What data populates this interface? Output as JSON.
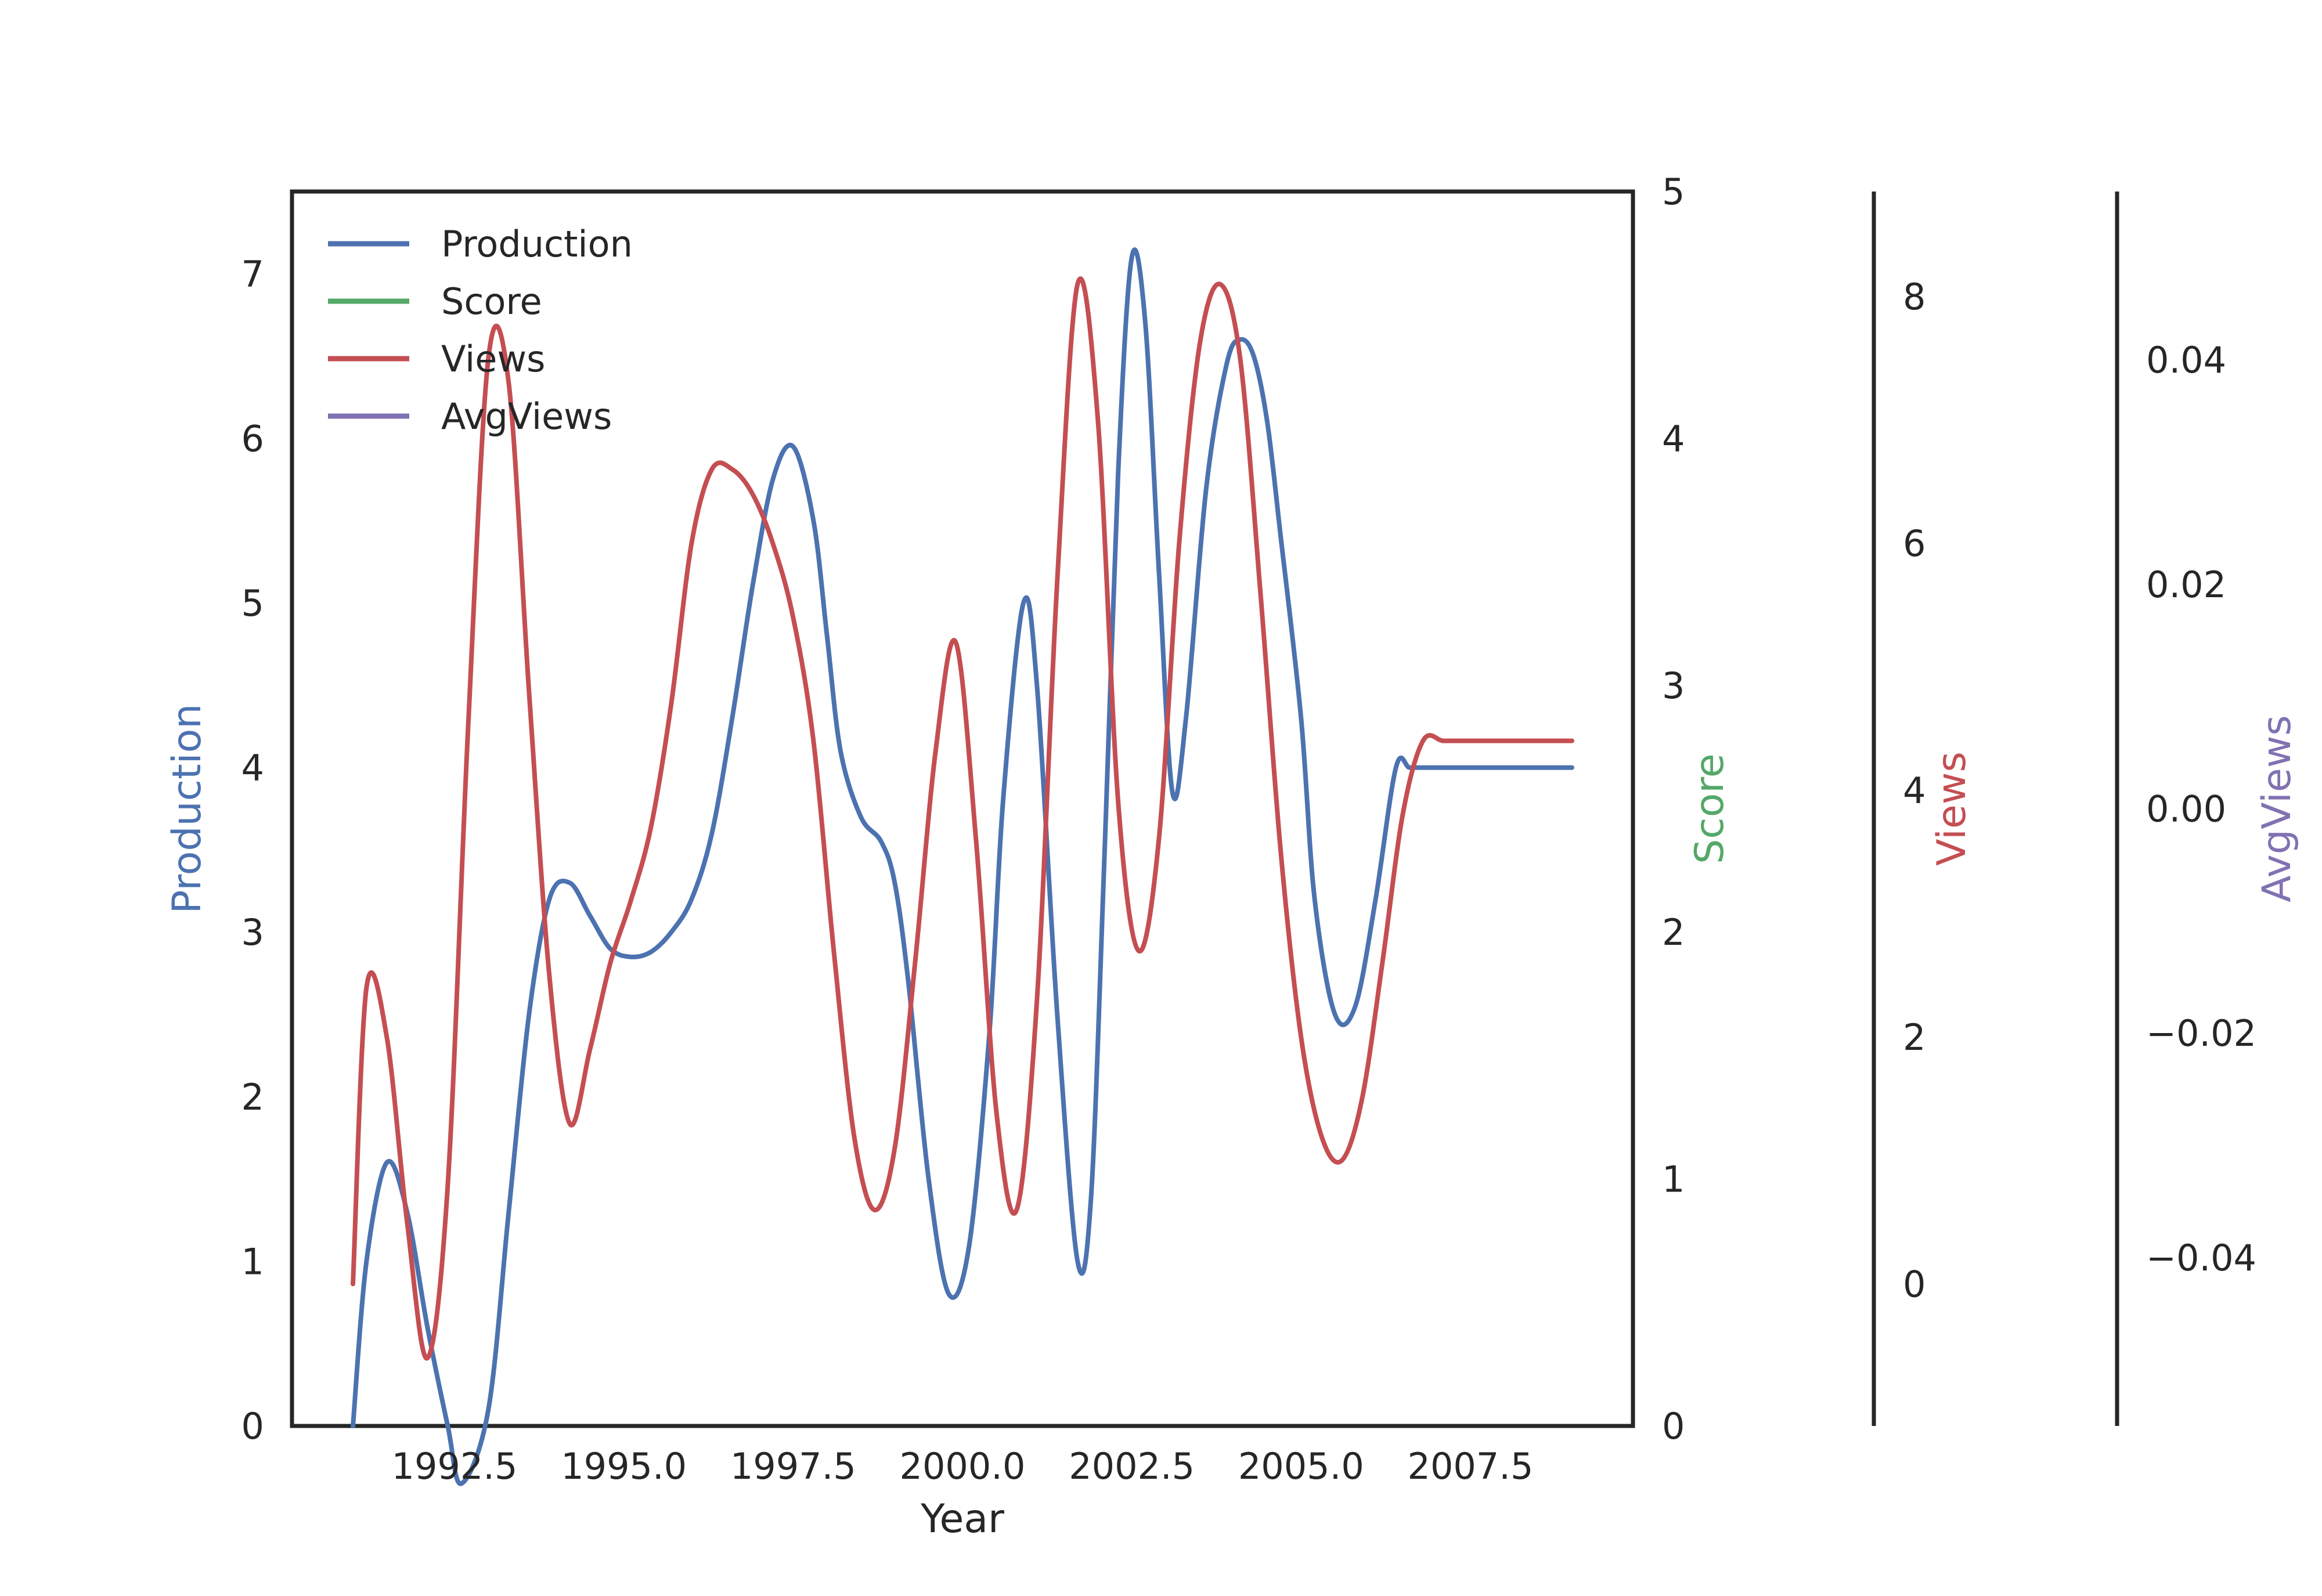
{
  "chart_data": {
    "type": "line",
    "xlabel": "Year",
    "x_ticks": [
      "1992.5",
      "1995.0",
      "1997.5",
      "2000.0",
      "2002.5",
      "2005.0",
      "2007.5"
    ],
    "xlim": [
      1990.1,
      2009.9
    ],
    "axes": [
      {
        "name": "Production",
        "label": "Production",
        "side": "left",
        "color": "#4c72b0",
        "ylim": [
          0,
          7.5
        ],
        "ticks": [
          "0",
          "1",
          "2",
          "3",
          "4",
          "5",
          "6",
          "7"
        ]
      },
      {
        "name": "Score",
        "label": "Score",
        "side": "right",
        "color": "#55a868",
        "ylim": [
          0,
          5
        ],
        "ticks": [
          "0",
          "1",
          "2",
          "3",
          "4",
          "5"
        ]
      },
      {
        "name": "Views",
        "label": "Views",
        "side": "right",
        "color": "#c44e52",
        "ylim": [
          -1.15,
          8.85
        ],
        "ticks": [
          "0",
          "2",
          "4",
          "6",
          "8"
        ]
      },
      {
        "name": "AvgViews",
        "label": "AvgViews",
        "side": "right",
        "color": "#8172b2",
        "ylim": [
          -0.055,
          0.055
        ],
        "ticks": [
          "−0.04",
          "−0.02",
          "0.00",
          "0.02",
          "0.04"
        ]
      }
    ],
    "legend": {
      "placement": "upper-left",
      "entries": [
        "Production",
        "Score",
        "Views",
        "AvgViews"
      ]
    },
    "grid": false,
    "series": [
      {
        "name": "Production",
        "color": "#4c72b0",
        "axis": 0,
        "x": [
          1991.0,
          1991.2,
          1991.5,
          1991.8,
          1992.1,
          1992.4,
          1992.6,
          1993.0,
          1993.3,
          1993.6,
          1993.9,
          1994.2,
          1994.5,
          1994.8,
          1995.1,
          1995.4,
          1995.7,
          1996.0,
          1996.3,
          1996.6,
          1996.9,
          1997.2,
          1997.5,
          1997.8,
          1998.0,
          1998.2,
          1998.5,
          1998.8,
          1999.0,
          1999.2,
          1999.5,
          1999.8,
          2000.1,
          2000.4,
          2000.6,
          2000.9,
          2001.1,
          2001.4,
          2001.7,
          2001.9,
          2002.1,
          2002.3,
          2002.5,
          2002.7,
          2002.9,
          2003.1,
          2003.3,
          2003.6,
          2003.9,
          2004.1,
          2004.3,
          2004.5,
          2004.7,
          2005.0,
          2005.2,
          2005.5,
          2005.8,
          2006.1,
          2006.4,
          2006.6,
          2006.8,
          2007.1,
          2007.4,
          2007.7,
          2008.0,
          2008.3,
          2008.5,
          2008.7,
          2008.9,
          2009.0
        ],
        "values": [
          0.0,
          1.0,
          1.6,
          1.3,
          0.6,
          0.0,
          -0.35,
          0.1,
          1.3,
          2.5,
          3.2,
          3.3,
          3.1,
          2.9,
          2.85,
          2.88,
          3.0,
          3.2,
          3.6,
          4.3,
          5.1,
          5.75,
          5.95,
          5.5,
          4.8,
          4.1,
          3.7,
          3.55,
          3.3,
          2.7,
          1.5,
          0.8,
          1.1,
          2.4,
          3.8,
          5.0,
          4.5,
          2.5,
          1.0,
          1.4,
          3.5,
          5.8,
          7.1,
          6.7,
          5.2,
          3.85,
          4.3,
          5.7,
          6.45,
          6.6,
          6.5,
          6.1,
          5.4,
          4.3,
          3.2,
          2.5,
          2.55,
          3.2,
          4.0,
          4.0,
          4.0,
          4.0,
          4.0,
          4.0,
          4.0,
          4.0,
          4.0,
          4.0,
          4.0,
          4.0
        ]
      },
      {
        "name": "Views",
        "color": "#c44e52",
        "axis": 2,
        "x": [
          1991.0,
          1991.2,
          1991.5,
          1991.8,
          1992.1,
          1992.4,
          1992.7,
          1993.0,
          1993.3,
          1993.6,
          1993.9,
          1994.2,
          1994.5,
          1994.8,
          1995.1,
          1995.4,
          1995.7,
          1996.0,
          1996.3,
          1996.6,
          1996.9,
          1997.2,
          1997.5,
          1997.8,
          1998.1,
          1998.4,
          1998.7,
          1999.0,
          1999.3,
          1999.6,
          1999.9,
          2000.2,
          2000.5,
          2000.8,
          2001.1,
          2001.4,
          2001.7,
          2002.0,
          2002.3,
          2002.6,
          2002.9,
          2003.2,
          2003.5,
          2003.8,
          2004.1,
          2004.4,
          2004.7,
          2005.0,
          2005.3,
          2005.6,
          2005.9,
          2006.2,
          2006.5,
          2006.8,
          2007.1,
          2007.4,
          2007.7,
          2008.0,
          2008.3,
          2008.6,
          2008.9,
          2009.0
        ],
        "values": [
          0.0,
          2.4,
          2.0,
          0.5,
          -0.6,
          0.8,
          4.5,
          7.5,
          7.3,
          4.8,
          2.5,
          1.3,
          1.9,
          2.6,
          3.1,
          3.7,
          4.7,
          6.0,
          6.6,
          6.6,
          6.4,
          6.0,
          5.4,
          4.4,
          2.7,
          1.2,
          0.6,
          1.1,
          2.6,
          4.3,
          5.2,
          3.6,
          1.4,
          0.6,
          2.3,
          5.7,
          8.1,
          7.0,
          3.9,
          2.7,
          3.6,
          6.0,
          7.6,
          8.1,
          7.5,
          5.6,
          3.5,
          2.0,
          1.2,
          1.0,
          1.5,
          2.6,
          3.8,
          4.4,
          4.4,
          4.4,
          4.4,
          4.4,
          4.4,
          4.4,
          4.4,
          4.4
        ]
      }
    ]
  }
}
